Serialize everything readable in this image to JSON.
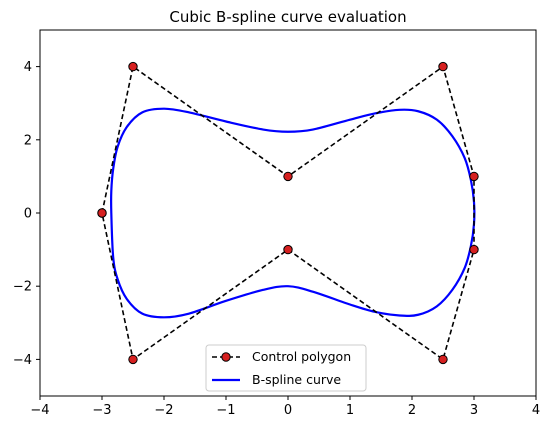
{
  "chart_data": {
    "type": "line",
    "title": "Cubic B-spline curve evaluation",
    "xlabel": "",
    "ylabel": "",
    "xlim": [
      -4,
      4
    ],
    "ylim": [
      -5,
      5
    ],
    "xticks": [
      -4,
      -3,
      -2,
      -1,
      0,
      1,
      2,
      3,
      4
    ],
    "yticks": [
      -4,
      -2,
      0,
      2,
      4
    ],
    "grid": false,
    "legend_placement": "lower-center",
    "series": [
      {
        "name": "Control polygon",
        "style": "dashed-with-markers",
        "line_color": "#000000",
        "marker_color": "#d62020",
        "x": [
          -3,
          -2.5,
          0,
          2.5,
          3,
          3,
          2.5,
          0,
          -2.5,
          -3
        ],
        "y": [
          0,
          4,
          1,
          4,
          1,
          -1,
          -4,
          -1,
          -4,
          0
        ]
      },
      {
        "name": "B-spline curve",
        "style": "solid",
        "line_color": "#0000ff",
        "x": [
          -2.85,
          -2.85,
          -2.82,
          -2.75,
          -2.6,
          -2.35,
          -2.0,
          -1.6,
          -1.0,
          -0.4,
          0.0,
          0.4,
          1.0,
          1.4,
          1.8,
          2.1,
          2.4,
          2.65,
          2.85,
          2.95,
          3.0,
          3.0,
          2.95,
          2.85,
          2.65,
          2.4,
          2.1,
          1.8,
          1.4,
          1.0,
          0.4,
          0.0,
          -0.4,
          -1.0,
          -1.6,
          -2.0,
          -2.35,
          -2.6,
          -2.75,
          -2.82,
          -2.85
        ],
        "y": [
          0.0,
          0.6,
          1.2,
          1.8,
          2.35,
          2.75,
          2.85,
          2.75,
          2.5,
          2.28,
          2.22,
          2.28,
          2.55,
          2.72,
          2.82,
          2.78,
          2.55,
          2.1,
          1.5,
          0.9,
          0.3,
          -0.3,
          -0.9,
          -1.5,
          -2.1,
          -2.55,
          -2.78,
          -2.8,
          -2.7,
          -2.5,
          -2.15,
          -2.0,
          -2.1,
          -2.4,
          -2.75,
          -2.85,
          -2.75,
          -2.35,
          -1.8,
          -1.2,
          0.0
        ]
      }
    ]
  }
}
